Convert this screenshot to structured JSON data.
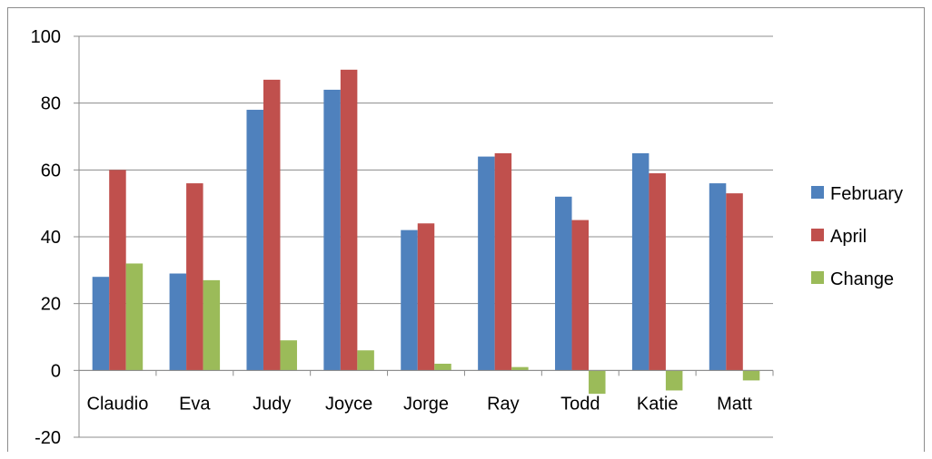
{
  "chart_data": {
    "type": "bar",
    "title": "",
    "xlabel": "",
    "ylabel": "",
    "categories": [
      "Claudio",
      "Eva",
      "Judy",
      "Joyce",
      "Jorge",
      "Ray",
      "Todd",
      "Katie",
      "Matt"
    ],
    "series": [
      {
        "name": "February",
        "values": [
          28,
          29,
          78,
          84,
          42,
          64,
          52,
          65,
          56
        ],
        "color": "#4F81BD"
      },
      {
        "name": "April",
        "values": [
          60,
          56,
          87,
          90,
          44,
          65,
          45,
          59,
          53
        ],
        "color": "#C0504D"
      },
      {
        "name": "Change",
        "values": [
          32,
          27,
          9,
          6,
          2,
          1,
          -7,
          -6,
          -3
        ],
        "color": "#9BBB59"
      }
    ],
    "ylim": [
      -20,
      100
    ],
    "yticks": [
      "100",
      "80",
      "60",
      "40",
      "20",
      "0",
      "-20"
    ],
    "grid": true,
    "legend_position": "right"
  }
}
